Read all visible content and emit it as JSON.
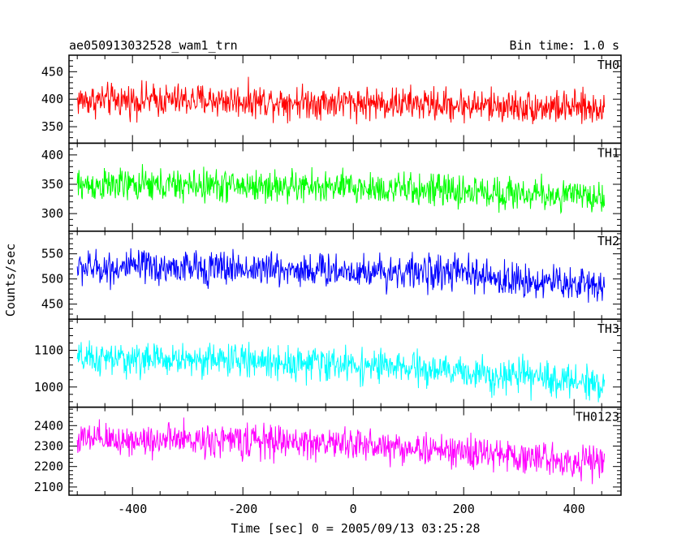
{
  "chart_data": {
    "type": "line",
    "title": "ae050913032528_wam1_trn",
    "subtitle": "Bin time: 1.0 s",
    "xlabel": "Time [sec] 0 = 2005/09/13 03:25:28",
    "ylabel": "Counts/sec",
    "xlim": [
      -515,
      485
    ],
    "x_ticks": [
      "-400",
      "-200",
      "0",
      "200",
      "400"
    ],
    "grid": false,
    "x_range_of_data": [
      -500,
      455
    ],
    "bin_seconds": 1.0,
    "panels": [
      {
        "name": "TH0",
        "color": "#ff0000",
        "ylim": [
          320,
          480
        ],
        "y_ticks": [
          "350",
          "400",
          "450"
        ],
        "trend": [
          [
            -500,
            398
          ],
          [
            -250,
            398
          ],
          [
            0,
            394
          ],
          [
            250,
            388
          ],
          [
            455,
            383
          ]
        ],
        "noise_amplitude": 28,
        "value_range": [
          320,
          478
        ]
      },
      {
        "name": "TH1",
        "color": "#00ff00",
        "ylim": [
          270,
          420
        ],
        "y_ticks": [
          "300",
          "350",
          "400"
        ],
        "trend": [
          [
            -500,
            348
          ],
          [
            -250,
            348
          ],
          [
            0,
            344
          ],
          [
            250,
            336
          ],
          [
            455,
            328
          ]
        ],
        "noise_amplitude": 26,
        "value_range": [
          272,
          418
        ]
      },
      {
        "name": "TH2",
        "color": "#0000ff",
        "ylim": [
          420,
          595
        ],
        "y_ticks": [
          "450",
          "500",
          "550"
        ],
        "trend": [
          [
            -500,
            522
          ],
          [
            -250,
            522
          ],
          [
            0,
            516
          ],
          [
            200,
            512
          ],
          [
            250,
            500
          ],
          [
            455,
            488
          ]
        ],
        "noise_amplitude": 32,
        "value_range": [
          422,
          595
        ]
      },
      {
        "name": "TH3",
        "color": "#00ffff",
        "ylim": [
          945,
          1185
        ],
        "y_ticks": [
          "1000",
          "1100"
        ],
        "trend": [
          [
            -500,
            1075
          ],
          [
            -250,
            1075
          ],
          [
            0,
            1060
          ],
          [
            250,
            1035
          ],
          [
            455,
            1010
          ]
        ],
        "noise_amplitude": 42,
        "value_range": [
          950,
          1180
        ]
      },
      {
        "name": "TH0123",
        "color": "#ff00ff",
        "ylim": [
          2060,
          2490
        ],
        "y_ticks": [
          "2100",
          "2200",
          "2300",
          "2400"
        ],
        "trend": [
          [
            -500,
            2330
          ],
          [
            -250,
            2330
          ],
          [
            0,
            2310
          ],
          [
            250,
            2260
          ],
          [
            455,
            2215
          ]
        ],
        "noise_amplitude": 75,
        "value_range": [
          2070,
          2480
        ]
      }
    ]
  }
}
